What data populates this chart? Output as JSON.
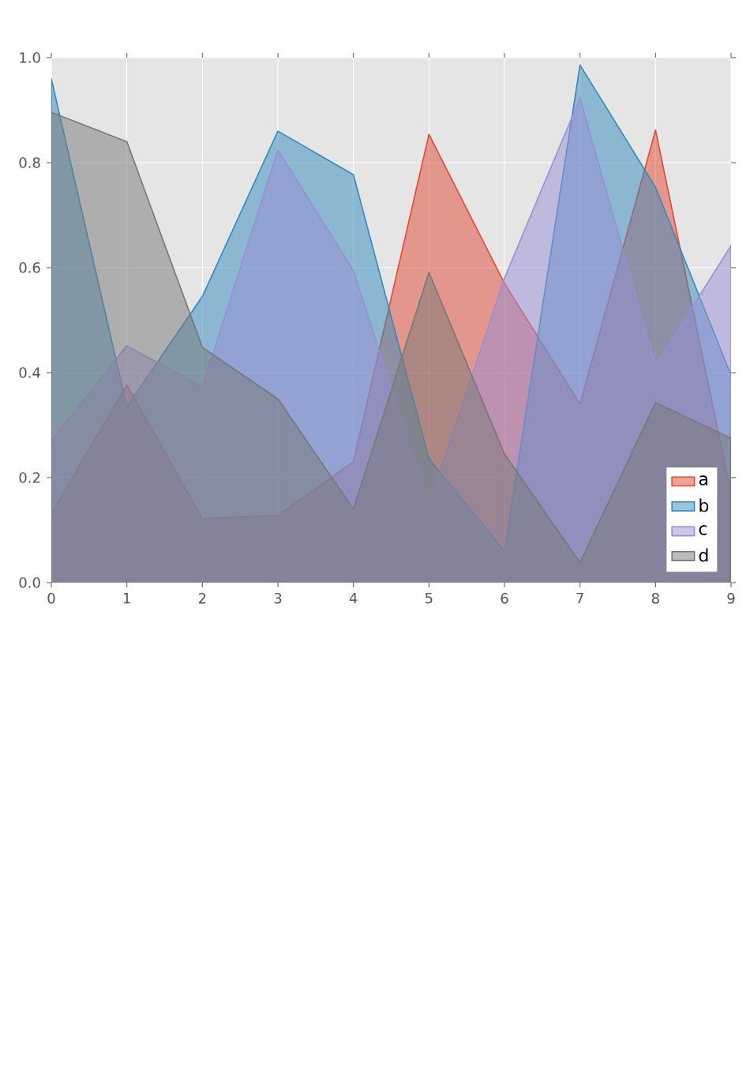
{
  "chart_data": {
    "type": "area",
    "x": [
      0,
      1,
      2,
      3,
      4,
      5,
      6,
      7,
      8,
      9
    ],
    "series": [
      {
        "name": "a",
        "color": "#e24a33",
        "values": [
          0.132,
          0.376,
          0.122,
          0.128,
          0.23,
          0.854,
          0.57,
          0.34,
          0.862,
          0.17
        ]
      },
      {
        "name": "b",
        "color": "#348abd",
        "values": [
          0.96,
          0.335,
          0.545,
          0.86,
          0.777,
          0.236,
          0.06,
          0.986,
          0.753,
          0.395
        ]
      },
      {
        "name": "c",
        "color": "#988ed5",
        "values": [
          0.27,
          0.451,
          0.373,
          0.824,
          0.594,
          0.147,
          0.58,
          0.923,
          0.414,
          0.642
        ]
      },
      {
        "name": "d",
        "color": "#777777",
        "values": [
          0.896,
          0.84,
          0.448,
          0.35,
          0.14,
          0.591,
          0.245,
          0.038,
          0.343,
          0.275
        ]
      }
    ],
    "xlim": [
      0,
      9
    ],
    "ylim": [
      0,
      1
    ],
    "xticks": [
      0,
      1,
      2,
      3,
      4,
      5,
      6,
      7,
      8,
      9
    ],
    "yticks": [
      {
        "value": 0,
        "label": "0.0"
      },
      0.2,
      0.4,
      0.6,
      0.8,
      {
        "value": 1,
        "label": "1.0"
      }
    ],
    "grid": true,
    "legend": "bottom right"
  }
}
